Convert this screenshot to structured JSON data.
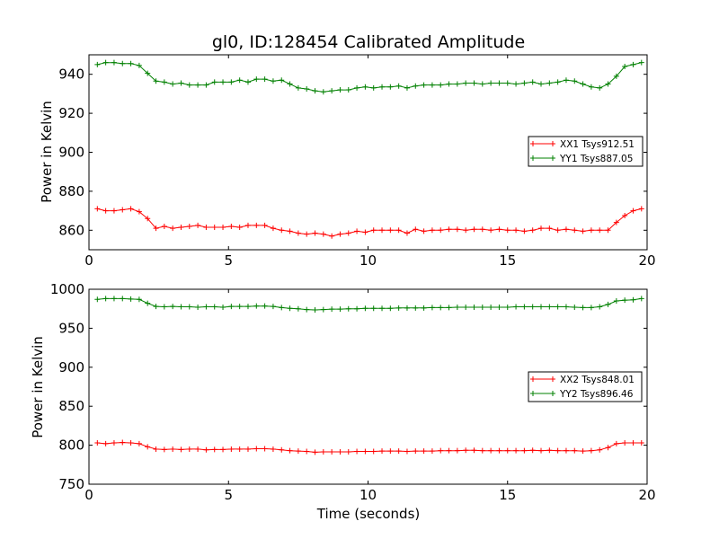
{
  "chart_data": [
    {
      "type": "line",
      "title": "gl0, ID:128454 Calibrated Amplitude",
      "xlabel": "",
      "ylabel": "Power in Kelvin",
      "xlim": [
        0,
        20
      ],
      "ylim": [
        850,
        950
      ],
      "xticks": [
        0,
        5,
        10,
        15,
        20
      ],
      "yticks": [
        860,
        880,
        900,
        920,
        940
      ],
      "grid": false,
      "legend": "center-right",
      "x": [
        0.3,
        0.6,
        0.9,
        1.2,
        1.5,
        1.8,
        2.1,
        2.4,
        2.7,
        3.0,
        3.3,
        3.6,
        3.9,
        4.2,
        4.5,
        4.8,
        5.1,
        5.4,
        5.7,
        6.0,
        6.3,
        6.6,
        6.9,
        7.2,
        7.5,
        7.8,
        8.1,
        8.4,
        8.7,
        9.0,
        9.3,
        9.6,
        9.9,
        10.2,
        10.5,
        10.8,
        11.1,
        11.4,
        11.7,
        12.0,
        12.3,
        12.6,
        12.9,
        13.2,
        13.5,
        13.8,
        14.1,
        14.4,
        14.7,
        15.0,
        15.3,
        15.6,
        15.9,
        16.2,
        16.5,
        16.8,
        17.1,
        17.4,
        17.7,
        18.0,
        18.3,
        18.6,
        18.9,
        19.2,
        19.5,
        19.8
      ],
      "series": [
        {
          "name": "XX1 Tsys912.51",
          "color": "#ff0000",
          "values": [
            871,
            870,
            870,
            870.5,
            871,
            869.5,
            866,
            861,
            862,
            861,
            861.5,
            862,
            862.5,
            861.5,
            861.5,
            861.5,
            862,
            861.5,
            862.5,
            862.5,
            862.5,
            861,
            860,
            859.5,
            858.5,
            858,
            858.5,
            858,
            857,
            858,
            858.5,
            859.5,
            859,
            860,
            860,
            860,
            860,
            858.5,
            860.5,
            859.5,
            860,
            860,
            860.5,
            860.5,
            860,
            860.5,
            860.5,
            860,
            860.5,
            860,
            860,
            859.5,
            860,
            861,
            861,
            860,
            860.5,
            860,
            859.5,
            860,
            860,
            860,
            864,
            867.5,
            870,
            871
          ]
        },
        {
          "name": "YY1 Tsys887.05",
          "color": "#008000",
          "values": [
            945,
            946,
            946,
            945.5,
            945.5,
            944.5,
            940.5,
            936.5,
            936,
            935,
            935.5,
            934.5,
            934.5,
            934.5,
            936,
            936,
            936,
            937,
            936,
            937.5,
            937.5,
            936.5,
            937,
            935,
            933,
            932.5,
            931.5,
            931,
            931.5,
            932,
            932,
            933,
            933.5,
            933,
            933.5,
            933.5,
            934,
            933,
            934,
            934.5,
            934.5,
            934.5,
            935,
            935,
            935.5,
            935.5,
            935,
            935.5,
            935.5,
            935.5,
            935,
            935.5,
            936,
            935,
            935.5,
            936,
            937,
            936.5,
            935,
            933.5,
            933,
            935,
            939,
            944,
            945,
            946
          ]
        }
      ]
    },
    {
      "type": "line",
      "title": "",
      "xlabel": "Time (seconds)",
      "ylabel": "Power in Kelvin",
      "xlim": [
        0,
        20
      ],
      "ylim": [
        750,
        1000
      ],
      "xticks": [
        0,
        5,
        10,
        15,
        20
      ],
      "yticks": [
        750,
        800,
        850,
        900,
        950,
        1000
      ],
      "grid": false,
      "legend": "center-right",
      "x": [
        0.3,
        0.6,
        0.9,
        1.2,
        1.5,
        1.8,
        2.1,
        2.4,
        2.7,
        3.0,
        3.3,
        3.6,
        3.9,
        4.2,
        4.5,
        4.8,
        5.1,
        5.4,
        5.7,
        6.0,
        6.3,
        6.6,
        6.9,
        7.2,
        7.5,
        7.8,
        8.1,
        8.4,
        8.7,
        9.0,
        9.3,
        9.6,
        9.9,
        10.2,
        10.5,
        10.8,
        11.1,
        11.4,
        11.7,
        12.0,
        12.3,
        12.6,
        12.9,
        13.2,
        13.5,
        13.8,
        14.1,
        14.4,
        14.7,
        15.0,
        15.3,
        15.6,
        15.9,
        16.2,
        16.5,
        16.8,
        17.1,
        17.4,
        17.7,
        18.0,
        18.3,
        18.6,
        18.9,
        19.2,
        19.5,
        19.8
      ],
      "series": [
        {
          "name": "XX2 Tsys848.01",
          "color": "#ff0000",
          "values": [
            803,
            802,
            803,
            803.5,
            803,
            802,
            798,
            795,
            794.5,
            795,
            794.5,
            795,
            795,
            794,
            794.5,
            794.5,
            795,
            795,
            795,
            795.5,
            795.5,
            795,
            794,
            793,
            792.5,
            792,
            791,
            791.5,
            791.5,
            791.5,
            791.5,
            792,
            792,
            792,
            792.5,
            792.5,
            792.5,
            792,
            792.5,
            792.5,
            792.5,
            793,
            793,
            793,
            793.5,
            793.5,
            793,
            793,
            793,
            793,
            793,
            793,
            793.5,
            793,
            793.5,
            793,
            793,
            793,
            792.5,
            793,
            794,
            797,
            802,
            803,
            803,
            803
          ]
        },
        {
          "name": "YY2 Tsys896.46",
          "color": "#008000",
          "values": [
            987,
            988,
            988,
            988,
            987.5,
            987,
            982,
            978,
            977.5,
            978,
            977.5,
            977.5,
            977,
            977.5,
            977.5,
            977,
            978,
            978,
            978,
            978.5,
            978.5,
            978,
            976.5,
            975.5,
            975,
            974,
            973.5,
            974,
            974.5,
            974.5,
            975,
            975,
            975.5,
            975.5,
            975.5,
            975.5,
            976,
            976,
            976,
            976,
            976.5,
            976.5,
            976.5,
            977,
            977,
            977,
            977,
            977,
            977,
            977,
            977.5,
            977.5,
            977.5,
            977.5,
            977.5,
            977.5,
            977.5,
            977,
            976.5,
            976.5,
            977.5,
            980.5,
            985,
            986,
            986.5,
            988
          ]
        }
      ]
    }
  ]
}
